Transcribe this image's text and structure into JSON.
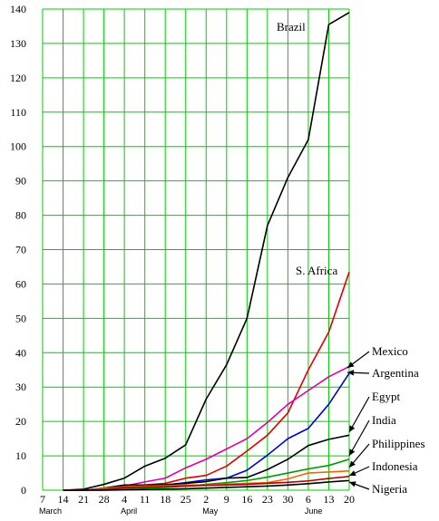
{
  "chart_data": {
    "type": "line",
    "title": "",
    "xlabel": "",
    "ylabel": "",
    "ylim": [
      0,
      140
    ],
    "y_ticks": [
      0,
      10,
      20,
      30,
      40,
      50,
      60,
      70,
      80,
      90,
      100,
      110,
      120,
      130,
      140
    ],
    "x_tick_labels": [
      "7",
      "14",
      "21",
      "28",
      "4",
      "11",
      "18",
      "25",
      "2",
      "9",
      "16",
      "23",
      "30",
      "6",
      "13",
      "20"
    ],
    "months": [
      {
        "label": "March",
        "at": "7"
      },
      {
        "label": "April",
        "at": "4"
      },
      {
        "label": "May",
        "at": "2"
      },
      {
        "label": "June",
        "at": "6"
      }
    ],
    "grid": true,
    "grid_color": "#00cc00",
    "series": [
      {
        "name": "Brazil",
        "color": "#000000",
        "values": [
          null,
          0,
          0.3,
          1.7,
          3.5,
          7,
          9.3,
          13.2,
          26.5,
          36.5,
          50,
          77,
          91,
          102,
          135.5,
          139
        ]
      },
      {
        "name": "S. Africa",
        "color": "#dd0000",
        "values": [
          null,
          0,
          0,
          0,
          0.4,
          1.5,
          2,
          3.5,
          4.3,
          7,
          11.4,
          16,
          22.5,
          35,
          46,
          63.5
        ]
      },
      {
        "name": "Mexico",
        "color": "#dd00aa",
        "values": [
          null,
          0,
          0,
          0.5,
          1.2,
          2.4,
          3.5,
          6.5,
          9,
          12,
          15,
          19.7,
          25,
          29,
          33,
          36
        ]
      },
      {
        "name": "Argentina",
        "color": "#0000cc",
        "values": [
          null,
          0,
          0,
          0.4,
          0.9,
          1.2,
          1.5,
          2.2,
          3,
          3.5,
          5.8,
          10.2,
          15,
          18,
          25,
          34
        ]
      },
      {
        "name": "Egypt",
        "color": "#000000",
        "values": [
          null,
          0,
          0,
          0.6,
          1.5,
          1.5,
          1.6,
          2,
          2.5,
          3.5,
          3.7,
          6,
          9,
          13,
          14.8,
          16
        ]
      },
      {
        "name": "India",
        "color": "#009900",
        "values": [
          null,
          0,
          0,
          0.2,
          0.4,
          0.6,
          0.8,
          1.2,
          1.7,
          2.2,
          2.8,
          3.8,
          5,
          6.2,
          7.2,
          9
        ]
      },
      {
        "name": "Philippines",
        "color": "#ee6600",
        "values": [
          null,
          0,
          0,
          0.5,
          1.0,
          1.2,
          1.3,
          1.5,
          1.5,
          1.8,
          2,
          2.2,
          3.3,
          5,
          5.3,
          5.6
        ]
      },
      {
        "name": "Indonesia",
        "color": "#aa0000",
        "values": [
          null,
          0,
          0,
          0.2,
          0.8,
          0.9,
          1.0,
          1.2,
          1.4,
          1.5,
          1.7,
          2,
          2.3,
          2.7,
          3.4,
          4
        ]
      },
      {
        "name": "Nigeria",
        "color": "#000000",
        "values": [
          null,
          0,
          0,
          0,
          0.1,
          0.2,
          0.3,
          0.4,
          0.6,
          0.8,
          1,
          1.2,
          1.5,
          1.9,
          2.4,
          2.8
        ]
      }
    ],
    "annotations": [
      {
        "text": "Brazil"
      },
      {
        "text": "S. Africa"
      },
      {
        "text": "Mexico"
      },
      {
        "text": "Argentina"
      },
      {
        "text": "Egypt"
      },
      {
        "text": "India"
      },
      {
        "text": "Philippines"
      },
      {
        "text": "Indonesia"
      },
      {
        "text": "Nigeria"
      }
    ]
  }
}
